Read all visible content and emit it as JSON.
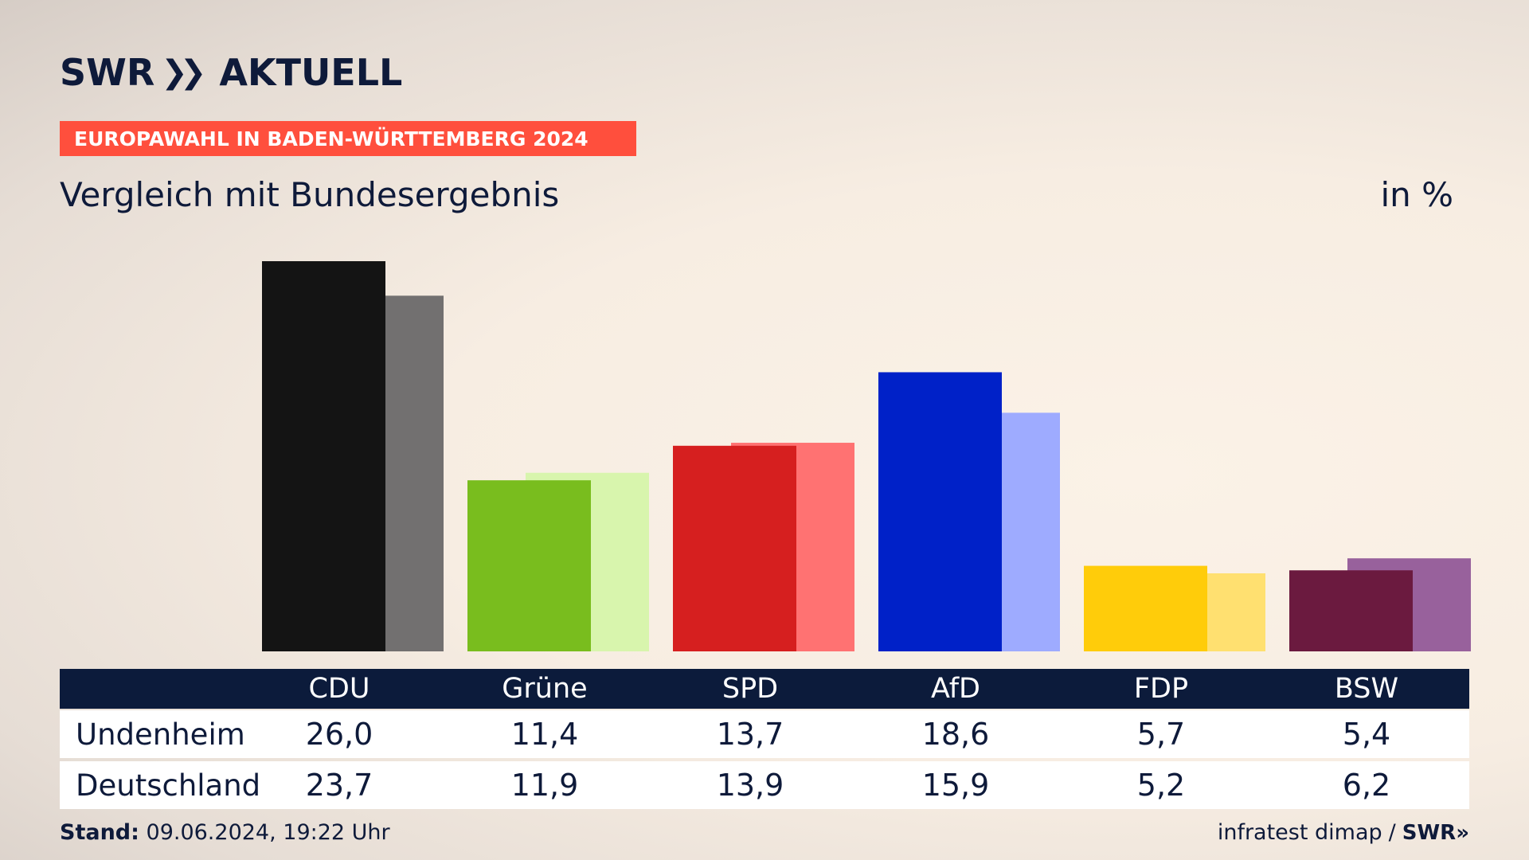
{
  "header": {
    "logo_text": "SWR",
    "logo_suffix": "AKTUELL",
    "topic": "EUROPAWAHL IN BADEN-WÜRTTEMBERG 2024",
    "subtitle": "Vergleich mit Bundesergebnis",
    "unit": "in %"
  },
  "chart_data": {
    "type": "bar",
    "categories": [
      "CDU",
      "Grüne",
      "SPD",
      "AfD",
      "FDP",
      "BSW"
    ],
    "series": [
      {
        "name": "Undenheim",
        "values": [
          26.0,
          11.4,
          13.7,
          18.6,
          5.7,
          5.4
        ]
      },
      {
        "name": "Deutschland",
        "values": [
          23.7,
          11.9,
          13.9,
          15.9,
          5.2,
          6.2
        ]
      }
    ],
    "colors": {
      "primary": [
        "#141414",
        "#79bd1e",
        "#d61f1f",
        "#0021c8",
        "#ffcc0a",
        "#6b1a3f"
      ],
      "secondary": [
        "#727070",
        "#d8f5ad",
        "#ff7272",
        "#9eabff",
        "#ffe070",
        "#98619c"
      ]
    },
    "ylim": [
      0,
      26.0
    ]
  },
  "table": {
    "headers": [
      "CDU",
      "Grüne",
      "SPD",
      "AfD",
      "FDP",
      "BSW"
    ],
    "rows": [
      {
        "label": "Undenheim",
        "values": [
          "26,0",
          "11,4",
          "13,7",
          "18,6",
          "5,7",
          "5,4"
        ]
      },
      {
        "label": "Deutschland",
        "values": [
          "23,7",
          "11,9",
          "13,9",
          "15,9",
          "5,2",
          "6,2"
        ]
      }
    ]
  },
  "footer": {
    "stand_label": "Stand:",
    "stand_value": "09.06.2024, 19:22 Uhr",
    "source": "infratest dimap",
    "source_sep": "/",
    "source_logo": "SWR"
  }
}
